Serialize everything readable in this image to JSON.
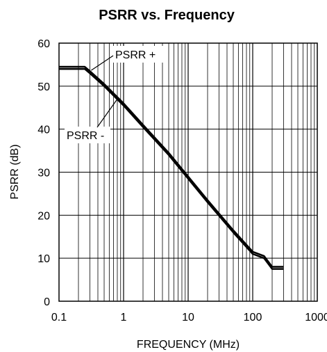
{
  "chart_data": {
    "type": "line",
    "title": "PSRR vs. Frequency",
    "xlabel": "FREQUENCY (MHz)",
    "ylabel": "PSRR (dB)",
    "x_scale": "log",
    "xlim": [
      0.1,
      1000
    ],
    "ylim": [
      0,
      60
    ],
    "grid": true,
    "x_tick_labels": [
      "0.1",
      "1",
      "10",
      "100",
      "1000"
    ],
    "y_tick_labels": [
      "0",
      "10",
      "20",
      "30",
      "40",
      "50",
      "60"
    ],
    "series": [
      {
        "name": "PSRR +",
        "x": [
          0.1,
          0.25,
          0.3,
          0.5,
          1,
          2,
          5,
          10,
          20,
          50,
          100,
          150,
          200,
          300
        ],
        "y": [
          54.5,
          54.5,
          53.5,
          50.5,
          46,
          41,
          34.5,
          29,
          23.5,
          16.5,
          11.5,
          10.5,
          8,
          8
        ]
      },
      {
        "name": "PSRR -",
        "x": [
          0.1,
          0.25,
          0.3,
          0.5,
          1,
          2,
          5,
          10,
          20,
          50,
          100,
          150,
          200,
          300
        ],
        "y": [
          54,
          54,
          53,
          50,
          45.5,
          40.5,
          34,
          28.5,
          23,
          16,
          11,
          10,
          7.5,
          7.5
        ]
      }
    ],
    "annotations": [
      {
        "text": "PSRR +",
        "target_x": 0.3,
        "target_y": 54
      },
      {
        "text": "PSRR -",
        "target_x": 0.8,
        "target_y": 47
      }
    ]
  }
}
